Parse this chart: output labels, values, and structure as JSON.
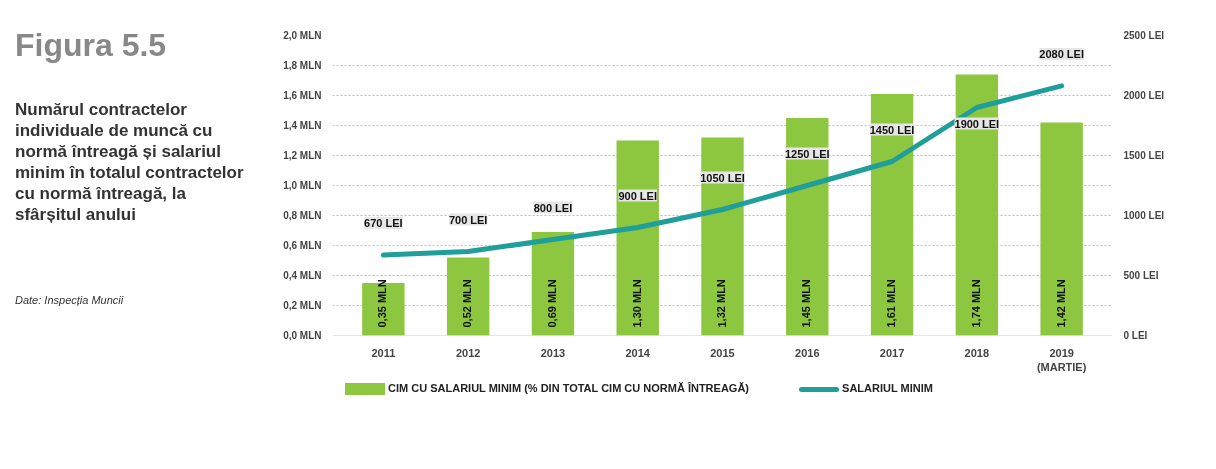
{
  "chart_data": {
    "type": "bar",
    "title": "Figura 5.5",
    "subtitle": "Numărul contractelor individuale de muncă cu normă întreagă și salariul minim în totalul contractelor cu normă întreagă, la sfârșitul anului",
    "annotations": [
      "Date: Inspecția Muncii"
    ],
    "categories": [
      "2011",
      "2012",
      "2013",
      "2014",
      "2015",
      "2016",
      "2017",
      "2018",
      "2019\n(MARTIE)"
    ],
    "series": [
      {
        "name": "CIM CU SALARIUL MINIM (% DIN TOTAL CIM CU NORMĂ ÎNTREAGĂ)",
        "color": "#8dc63f",
        "values": [
          0.35,
          0.52,
          0.69,
          1.3,
          1.32,
          1.45,
          1.61,
          1.74,
          1.42
        ],
        "value_labels": [
          "0,35 MLN",
          "0,52 MLN",
          "0,69 MLN",
          "1,30 MLN",
          "1,32 MLN",
          "1,45 MLN",
          "1,61 MLN",
          "1,74 MLN",
          "1,42 MLN"
        ]
      },
      {
        "name": "SALARIUL MINIM",
        "type": "line",
        "axis": "y2",
        "color": "#1f9e9a",
        "values": [
          670,
          700,
          800,
          900,
          1050,
          1250,
          1450,
          1900,
          2080
        ],
        "value_labels": [
          "670 LEI",
          "700 LEI",
          "800 LEI",
          "900 LEI",
          "1050 LEI",
          "1250 LEI",
          "1450 LEI",
          "1900 LEI",
          "2080 LEI"
        ]
      }
    ],
    "ylim": [
      0,
      2.0
    ],
    "yticks": [
      {
        "value": 0,
        "label": "0,0 MLN"
      },
      {
        "value": 0.2,
        "label": "0,2 MLN"
      },
      {
        "value": 0.4,
        "label": "0,4 MLN"
      },
      {
        "value": 0.6,
        "label": "0,6 MLN"
      },
      {
        "value": 0.8,
        "label": "0,8 MLN"
      },
      {
        "value": 1.0,
        "label": "1,0 MLN"
      },
      {
        "value": 1.2,
        "label": "1,2 MLN"
      },
      {
        "value": 1.4,
        "label": "1,4 MLN"
      },
      {
        "value": 1.6,
        "label": "1,6 MLN"
      },
      {
        "value": 1.8,
        "label": "1,8 MLN"
      },
      {
        "value": 2.0,
        "label": "2,0 MLN"
      }
    ],
    "y2lim": [
      0,
      2500
    ],
    "y2ticks": [
      {
        "value": 0,
        "label": "0 LEI"
      },
      {
        "value": 500,
        "label": "500 LEI"
      },
      {
        "value": 1000,
        "label": "1000 LEI"
      },
      {
        "value": 1500,
        "label": "1500 LEI"
      },
      {
        "value": 2000,
        "label": "2000 LEI"
      },
      {
        "value": 2500,
        "label": "2500 LEI"
      }
    ],
    "grid": "y",
    "legend": "bottom"
  }
}
